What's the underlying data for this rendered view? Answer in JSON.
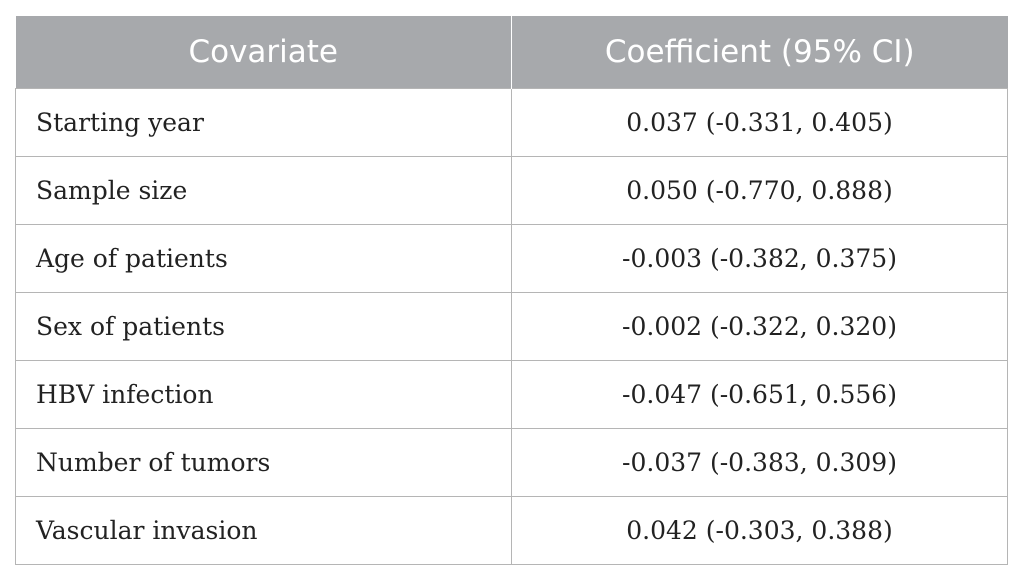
{
  "table": {
    "headers": [
      "Covariate",
      "Coefficient (95% CI)"
    ],
    "rows": [
      {
        "covariate": "Starting year",
        "coefficient": "0.037 (-0.331, 0.405)"
      },
      {
        "covariate": "Sample size",
        "coefficient": "0.050 (-0.770, 0.888)"
      },
      {
        "covariate": "Age of patients",
        "coefficient": "-0.003 (-0.382, 0.375)"
      },
      {
        "covariate": "Sex of patients",
        "coefficient": "-0.002 (-0.322, 0.320)"
      },
      {
        "covariate": "HBV infection",
        "coefficient": "-0.047 (-0.651, 0.556)"
      },
      {
        "covariate": "Number of tumors",
        "coefficient": "-0.037 (-0.383, 0.309)"
      },
      {
        "covariate": "Vascular invasion",
        "coefficient": "0.042 (-0.303, 0.388)"
      }
    ]
  },
  "colors": {
    "header_background": "#a7a9ac",
    "header_text": "#ffffff",
    "border": "#b5b5b5"
  }
}
